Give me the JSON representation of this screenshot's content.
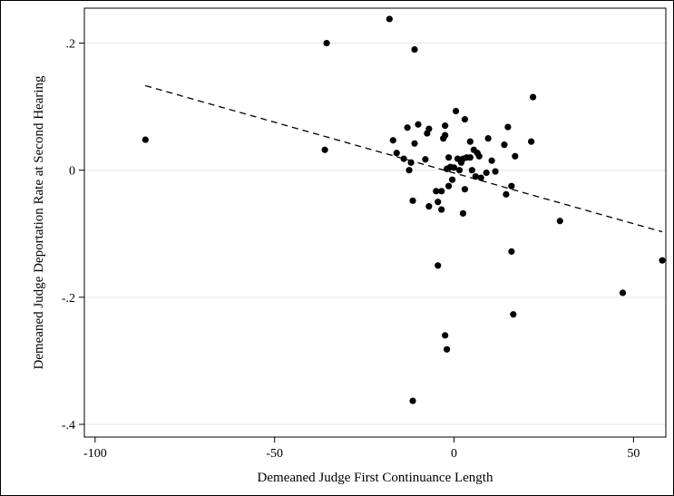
{
  "chart_data": {
    "type": "scatter",
    "xlabel": "Demeaned Judge First Continuance Length",
    "ylabel": "Demeaned Judge Deportation Rate at Second Hearing",
    "xlim": [
      -103,
      59
    ],
    "ylim": [
      -0.42,
      0.255
    ],
    "x_ticks": [
      -100,
      -50,
      0,
      50
    ],
    "x_tick_labels": [
      "-100",
      "-50",
      "0",
      "50"
    ],
    "y_ticks": [
      -0.4,
      -0.2,
      0,
      0.2
    ],
    "y_tick_labels": [
      "-.4",
      "-.2",
      "0",
      ".2"
    ],
    "grid": true,
    "fit_line": {
      "style": "dashed",
      "x": [
        -86,
        58
      ],
      "y": [
        0.133,
        -0.097
      ]
    },
    "series": [
      {
        "points": [
          [
            -86,
            0.048
          ],
          [
            -35.5,
            0.2
          ],
          [
            -36,
            0.032
          ],
          [
            -18,
            0.238
          ],
          [
            -11,
            0.19
          ],
          [
            -17,
            0.047
          ],
          [
            -16,
            0.027
          ],
          [
            -14,
            0.018
          ],
          [
            -13,
            0.067
          ],
          [
            -12.5,
            0.0
          ],
          [
            -12,
            0.012
          ],
          [
            -11,
            0.042
          ],
          [
            -10,
            0.072
          ],
          [
            -8,
            0.017
          ],
          [
            -7.5,
            0.058
          ],
          [
            -7,
            0.065
          ],
          [
            -11.5,
            -0.048
          ],
          [
            -7,
            -0.057
          ],
          [
            -5,
            -0.033
          ],
          [
            -4.5,
            -0.05
          ],
          [
            -3.5,
            -0.062
          ],
          [
            -3.5,
            -0.033
          ],
          [
            -3,
            0.05
          ],
          [
            -2.5,
            0.055
          ],
          [
            -2.5,
            0.07
          ],
          [
            -2,
            0.002
          ],
          [
            -1.5,
            0.003
          ],
          [
            -1.5,
            0.02
          ],
          [
            -1,
            0.005
          ],
          [
            -0.5,
            -0.015
          ],
          [
            0,
            0.004
          ],
          [
            0.5,
            0.093
          ],
          [
            1,
            0.018
          ],
          [
            1.5,
            0.0
          ],
          [
            2,
            0.012
          ],
          [
            2.5,
            0.018
          ],
          [
            3,
            -0.03
          ],
          [
            3,
            0.08
          ],
          [
            3.5,
            0.02
          ],
          [
            4.5,
            0.02
          ],
          [
            4.5,
            0.045
          ],
          [
            5,
            0.0
          ],
          [
            5.5,
            0.032
          ],
          [
            6,
            -0.01
          ],
          [
            6.5,
            0.027
          ],
          [
            7,
            0.022
          ],
          [
            7.5,
            -0.012
          ],
          [
            9,
            -0.004
          ],
          [
            9.5,
            0.05
          ],
          [
            10.5,
            0.015
          ],
          [
            11.5,
            -0.002
          ],
          [
            14,
            0.04
          ],
          [
            14.5,
            -0.038
          ],
          [
            15,
            0.068
          ],
          [
            16,
            -0.025
          ],
          [
            17,
            0.022
          ],
          [
            22,
            0.115
          ],
          [
            21.5,
            0.045
          ],
          [
            2.5,
            -0.068
          ],
          [
            -1.5,
            -0.025
          ],
          [
            -4.5,
            -0.15
          ],
          [
            -2.5,
            -0.26
          ],
          [
            -2,
            -0.282
          ],
          [
            -11.5,
            -0.363
          ],
          [
            16,
            -0.128
          ],
          [
            16.5,
            -0.227
          ],
          [
            29.5,
            -0.08
          ],
          [
            47,
            -0.193
          ],
          [
            58,
            -0.142
          ]
        ]
      }
    ]
  }
}
